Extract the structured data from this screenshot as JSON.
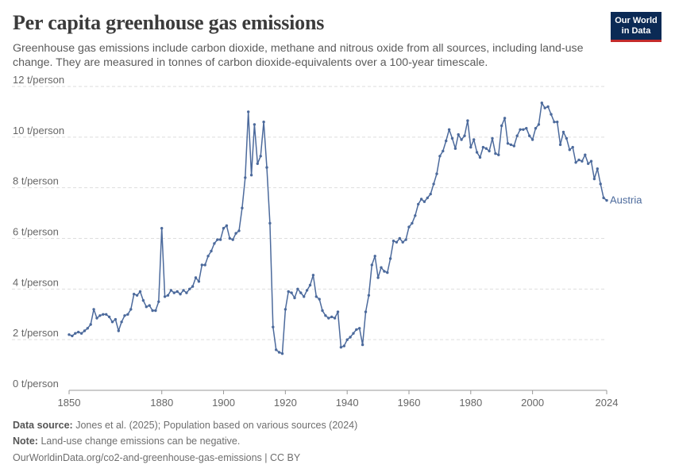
{
  "header": {
    "title": "Per capita greenhouse gas emissions",
    "subtitle": "Greenhouse gas emissions include carbon dioxide, methane and nitrous oxide from all sources, including land-use change. They are measured in tonnes of carbon dioxide-equivalents over a 100-year timescale.",
    "logo_line1": "Our World",
    "logo_line2": "in Data"
  },
  "footer": {
    "source_label": "Data source:",
    "source_text": "Jones et al. (2025); Population based on various sources (2024)",
    "note_label": "Note:",
    "note_text": "Land-use change emissions can be negative.",
    "url": "OurWorldinData.org/co2-and-greenhouse-gas-emissions | CC BY"
  },
  "colors": {
    "line": "#4c6a9c",
    "logo_bg": "#0b2a55",
    "logo_accent": "#c42b2b",
    "grid": "#dddddd"
  },
  "chart_data": {
    "type": "line",
    "title": "Per capita greenhouse gas emissions",
    "xlabel": "",
    "ylabel": "",
    "xlim": [
      1850,
      2024
    ],
    "ylim": [
      0,
      12
    ],
    "x_ticks": [
      1850,
      1880,
      1900,
      1920,
      1940,
      1960,
      1980,
      2000,
      2024
    ],
    "y_ticks": [
      0,
      2,
      4,
      6,
      8,
      10,
      12
    ],
    "y_tick_labels": [
      "0 t/person",
      "2 t/person",
      "4 t/person",
      "6 t/person",
      "8 t/person",
      "10 t/person",
      "12 t/person"
    ],
    "grid": "horizontal dashed",
    "markers": true,
    "series": [
      {
        "name": "Austria",
        "x": [
          1850,
          1851,
          1852,
          1853,
          1854,
          1855,
          1856,
          1857,
          1858,
          1859,
          1860,
          1861,
          1862,
          1863,
          1864,
          1865,
          1866,
          1867,
          1868,
          1869,
          1870,
          1871,
          1872,
          1873,
          1874,
          1875,
          1876,
          1877,
          1878,
          1879,
          1880,
          1881,
          1882,
          1883,
          1884,
          1885,
          1886,
          1887,
          1888,
          1889,
          1890,
          1891,
          1892,
          1893,
          1894,
          1895,
          1896,
          1897,
          1898,
          1899,
          1900,
          1901,
          1902,
          1903,
          1904,
          1905,
          1906,
          1907,
          1908,
          1909,
          1910,
          1911,
          1912,
          1913,
          1914,
          1915,
          1916,
          1917,
          1918,
          1919,
          1920,
          1921,
          1922,
          1923,
          1924,
          1925,
          1926,
          1927,
          1928,
          1929,
          1930,
          1931,
          1932,
          1933,
          1934,
          1935,
          1936,
          1937,
          1938,
          1939,
          1940,
          1941,
          1942,
          1943,
          1944,
          1945,
          1946,
          1947,
          1948,
          1949,
          1950,
          1951,
          1952,
          1953,
          1954,
          1955,
          1956,
          1957,
          1958,
          1959,
          1960,
          1961,
          1962,
          1963,
          1964,
          1965,
          1966,
          1967,
          1968,
          1969,
          1970,
          1971,
          1972,
          1973,
          1974,
          1975,
          1976,
          1977,
          1978,
          1979,
          1980,
          1981,
          1982,
          1983,
          1984,
          1985,
          1986,
          1987,
          1988,
          1989,
          1990,
          1991,
          1992,
          1993,
          1994,
          1995,
          1996,
          1997,
          1998,
          1999,
          2000,
          2001,
          2002,
          2003,
          2004,
          2005,
          2006,
          2007,
          2008,
          2009,
          2010,
          2011,
          2012,
          2013,
          2014,
          2015,
          2016,
          2017,
          2018,
          2019,
          2020,
          2021,
          2022,
          2023,
          2024
        ],
        "values": [
          2.2,
          2.15,
          2.25,
          2.3,
          2.25,
          2.35,
          2.45,
          2.6,
          3.2,
          2.85,
          2.95,
          3.0,
          3.0,
          2.9,
          2.7,
          2.8,
          2.35,
          2.7,
          2.95,
          3.0,
          3.2,
          3.8,
          3.75,
          3.9,
          3.55,
          3.3,
          3.35,
          3.15,
          3.15,
          3.5,
          6.4,
          3.7,
          3.75,
          3.95,
          3.85,
          3.9,
          3.8,
          3.95,
          3.85,
          4.0,
          4.1,
          4.45,
          4.3,
          4.95,
          4.95,
          5.3,
          5.5,
          5.8,
          5.95,
          5.95,
          6.4,
          6.5,
          6.0,
          5.95,
          6.2,
          6.3,
          7.2,
          8.4,
          11.0,
          8.5,
          10.5,
          8.95,
          9.25,
          10.6,
          8.8,
          6.6,
          2.5,
          1.6,
          1.5,
          1.45,
          3.2,
          3.9,
          3.85,
          3.65,
          4.0,
          3.85,
          3.7,
          3.95,
          4.15,
          4.55,
          3.7,
          3.6,
          3.15,
          2.95,
          2.85,
          2.9,
          2.85,
          3.1,
          1.7,
          1.75,
          2.0,
          2.1,
          2.25,
          2.4,
          2.45,
          1.8,
          3.1,
          3.75,
          4.95,
          5.3,
          4.45,
          4.85,
          4.7,
          4.65,
          5.2,
          5.9,
          5.85,
          6.0,
          5.85,
          5.95,
          6.45,
          6.6,
          6.9,
          7.35,
          7.55,
          7.45,
          7.6,
          7.75,
          8.15,
          8.55,
          9.25,
          9.45,
          9.85,
          10.3,
          9.95,
          9.55,
          10.1,
          9.9,
          10.05,
          10.65,
          9.6,
          9.9,
          9.4,
          9.2,
          9.6,
          9.55,
          9.45,
          9.95,
          9.35,
          9.3,
          10.45,
          10.75,
          9.75,
          9.7,
          9.65,
          10.05,
          10.3,
          10.3,
          10.35,
          10.05,
          9.9,
          10.35,
          10.5,
          11.35,
          11.15,
          11.2,
          10.9,
          10.6,
          10.6,
          9.7,
          10.2,
          9.95,
          9.5,
          9.6,
          9.0,
          9.1,
          9.05,
          9.3,
          8.95,
          9.05,
          8.35,
          8.75,
          8.15,
          7.6,
          7.5
        ]
      }
    ]
  }
}
